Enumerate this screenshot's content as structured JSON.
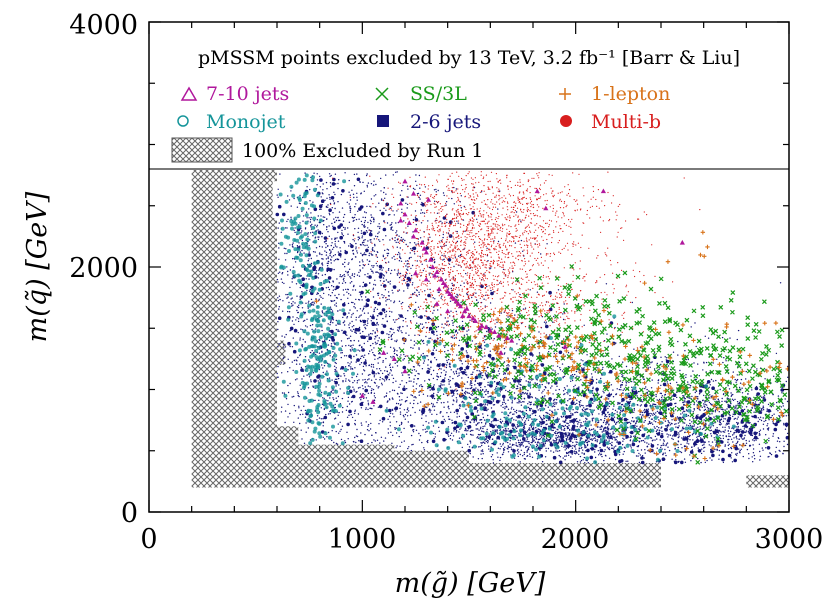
{
  "chart_data": {
    "type": "scatter",
    "title": "pMSSM points excluded by 13 TeV, 3.2 fb⁻¹ [Barr & Liu]",
    "xlabel": "m(g̃) [GeV]",
    "ylabel": "m(q̃) [GeV]",
    "xlim": [
      0,
      3000
    ],
    "ylim": [
      0,
      4000
    ],
    "x_ticks": [
      "0",
      "1000",
      "2000",
      "3000"
    ],
    "y_ticks": [
      "0",
      "2000",
      "4000"
    ],
    "grid": false,
    "legend": {
      "placement": "top",
      "entries": [
        {
          "label": "7-10 jets",
          "marker": "triangle",
          "color": "#b0179c"
        },
        {
          "label": "SS/3L",
          "marker": "cross",
          "color": "#1a9a1a"
        },
        {
          "label": "1-lepton",
          "marker": "plus",
          "color": "#d8731a"
        },
        {
          "label": "Monojet",
          "marker": "circle",
          "color": "#15959a"
        },
        {
          "label": "2-6 jets",
          "marker": "square",
          "color": "#16167a"
        },
        {
          "label": "Multi-b",
          "marker": "dot",
          "color": "#d81e1e"
        }
      ],
      "excluded_label": "100% Excluded by Run 1",
      "legend_box_lower_edge_y": 2800
    },
    "excluded_region": [
      [
        200,
        200
      ],
      [
        200,
        2800
      ],
      [
        600,
        2800
      ],
      [
        600,
        2700
      ],
      [
        580,
        2700
      ],
      [
        580,
        2400
      ],
      [
        600,
        2400
      ],
      [
        600,
        1400
      ],
      [
        640,
        1400
      ],
      [
        640,
        1200
      ],
      [
        600,
        1200
      ],
      [
        600,
        700
      ],
      [
        700,
        700
      ],
      [
        700,
        550
      ],
      [
        1150,
        550
      ],
      [
        1150,
        500
      ],
      [
        1500,
        500
      ],
      [
        1500,
        400
      ],
      [
        2400,
        400
      ],
      [
        2400,
        200
      ]
    ],
    "excluded_region_2": [
      [
        2800,
        200
      ],
      [
        2800,
        300
      ],
      [
        3000,
        300
      ],
      [
        3000,
        200
      ]
    ],
    "series": [
      {
        "name": "2-6 jets",
        "color": "#16167a",
        "clusters": [
          {
            "cx": 850,
            "cy": 1800,
            "sx": 160,
            "sy": 700,
            "n": 1200
          },
          {
            "cx": 1350,
            "cy": 1100,
            "sx": 350,
            "sy": 400,
            "n": 1400
          },
          {
            "cx": 2100,
            "cy": 800,
            "sx": 450,
            "sy": 250,
            "n": 2000
          },
          {
            "cx": 1900,
            "cy": 620,
            "sx": 180,
            "sy": 80,
            "n": 700
          },
          {
            "cx": 2700,
            "cy": 700,
            "sx": 200,
            "sy": 180,
            "n": 700
          },
          {
            "cx": 1100,
            "cy": 2200,
            "sx": 250,
            "sy": 350,
            "n": 500
          }
        ]
      },
      {
        "name": "Multi-b",
        "color": "#d81e1e",
        "clusters": [
          {
            "cx": 1500,
            "cy": 2000,
            "sx": 180,
            "sy": 300,
            "n": 1200
          },
          {
            "cx": 1650,
            "cy": 2450,
            "sx": 260,
            "sy": 230,
            "n": 700
          },
          {
            "cx": 1900,
            "cy": 1700,
            "sx": 200,
            "sy": 200,
            "n": 300
          }
        ]
      },
      {
        "name": "Monojet",
        "color": "#15959a",
        "clusters": [
          {
            "cx": 800,
            "cy": 1200,
            "sx": 60,
            "sy": 350,
            "n": 160
          },
          {
            "cx": 710,
            "cy": 2200,
            "sx": 50,
            "sy": 300,
            "n": 90
          },
          {
            "cx": 2000,
            "cy": 700,
            "sx": 300,
            "sy": 150,
            "n": 140
          },
          {
            "cx": 1700,
            "cy": 1000,
            "sx": 250,
            "sy": 250,
            "n": 60
          }
        ]
      },
      {
        "name": "SS/3L",
        "color": "#1a9a1a",
        "clusters": [
          {
            "cx": 2400,
            "cy": 1200,
            "sx": 400,
            "sy": 250,
            "n": 260
          },
          {
            "cx": 1800,
            "cy": 1400,
            "sx": 300,
            "sy": 250,
            "n": 180
          },
          {
            "cx": 2700,
            "cy": 1000,
            "sx": 250,
            "sy": 250,
            "n": 120
          }
        ]
      },
      {
        "name": "1-lepton",
        "color": "#d8731a",
        "clusters": [
          {
            "cx": 1800,
            "cy": 1300,
            "sx": 300,
            "sy": 200,
            "n": 140
          },
          {
            "cx": 2500,
            "cy": 1000,
            "sx": 350,
            "sy": 350,
            "n": 100
          },
          {
            "cx": 2600,
            "cy": 2150,
            "sx": 60,
            "sy": 80,
            "n": 5
          }
        ]
      },
      {
        "name": "7-10 jets",
        "color": "#b0179c",
        "points": [
          [
            1180,
            2520
          ],
          [
            1200,
            2430
          ],
          [
            1220,
            2360
          ],
          [
            1250,
            2300
          ],
          [
            1280,
            2200
          ],
          [
            1300,
            2120
          ],
          [
            1320,
            2060
          ],
          [
            1330,
            2000
          ],
          [
            1350,
            1960
          ],
          [
            1370,
            1900
          ],
          [
            1390,
            1850
          ],
          [
            1400,
            1800
          ],
          [
            1420,
            1760
          ],
          [
            1440,
            1720
          ],
          [
            1460,
            1680
          ],
          [
            1480,
            1640
          ],
          [
            1500,
            1600
          ],
          [
            1530,
            1560
          ],
          [
            1560,
            1520
          ],
          [
            1600,
            1480
          ],
          [
            1640,
            1440
          ],
          [
            1700,
            1400
          ],
          [
            1180,
            2380
          ],
          [
            1240,
            2250
          ],
          [
            1290,
            2150
          ],
          [
            1340,
            1930
          ],
          [
            1380,
            1870
          ],
          [
            1410,
            1780
          ],
          [
            1450,
            1700
          ],
          [
            1490,
            1660
          ],
          [
            1520,
            1580
          ],
          [
            1580,
            1510
          ],
          [
            1620,
            1470
          ],
          [
            1680,
            1420
          ],
          [
            1300,
            1900
          ],
          [
            1360,
            1820
          ],
          [
            1430,
            1740
          ],
          [
            1550,
            1500
          ],
          [
            1200,
            2700
          ],
          [
            1240,
            2600
          ],
          [
            1310,
            2550
          ],
          [
            1820,
            2620
          ],
          [
            1860,
            2480
          ],
          [
            2130,
            2620
          ],
          [
            1400,
            1640
          ],
          [
            1350,
            1700
          ],
          [
            1250,
            1950
          ],
          [
            1470,
            1600
          ],
          [
            1100,
            1300
          ],
          [
            1000,
            950
          ],
          [
            1050,
            900
          ],
          [
            1150,
            1250
          ],
          [
            1200,
            1150
          ],
          [
            2500,
            2200
          ],
          [
            1950,
            1350
          ],
          [
            1650,
            1300
          ]
        ]
      }
    ]
  }
}
